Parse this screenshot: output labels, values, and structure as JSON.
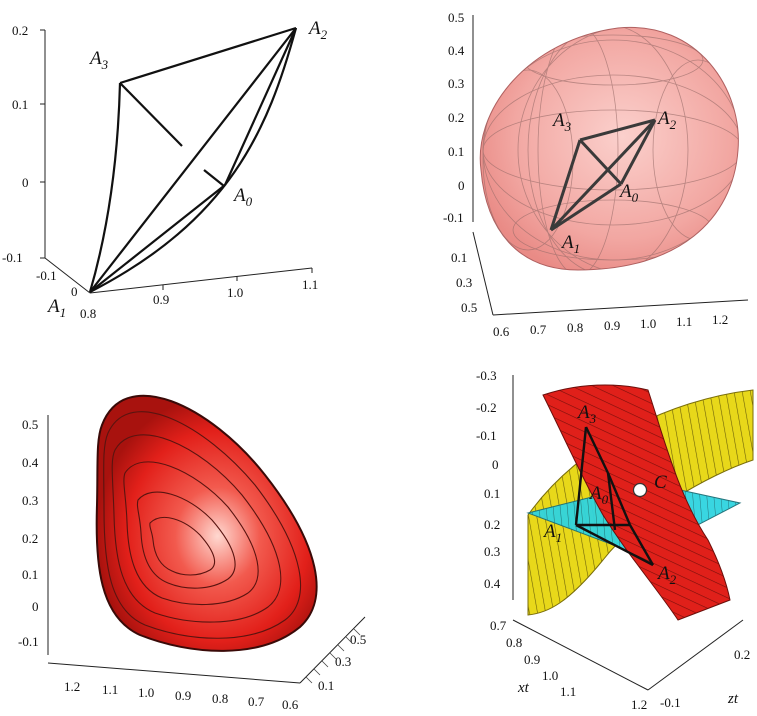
{
  "panels": {
    "top_left": {
      "z_ticks": [
        "0.2",
        "0.1",
        "0",
        "-0.1"
      ],
      "x_ticks": [
        "0.8",
        "0.9",
        "1.0",
        "1.1"
      ],
      "y_ticks": [
        "-0.1",
        "0"
      ],
      "vertices": [
        {
          "letter": "A",
          "sub": "3"
        },
        {
          "letter": "A",
          "sub": "2"
        },
        {
          "letter": "A",
          "sub": "0"
        },
        {
          "letter": "A",
          "sub": "1"
        }
      ]
    },
    "top_right": {
      "z_ticks": [
        "0.5",
        "0.4",
        "0.3",
        "0.2",
        "0.1",
        "0",
        "-0.1"
      ],
      "x_ticks": [
        "0.6",
        "0.7",
        "0.8",
        "0.9",
        "1.0",
        "1.1",
        "1.2"
      ],
      "y_ticks": [
        "0.1",
        "0.3",
        "0.5"
      ],
      "vertices": [
        {
          "letter": "A",
          "sub": "3"
        },
        {
          "letter": "A",
          "sub": "2"
        },
        {
          "letter": "A",
          "sub": "0"
        },
        {
          "letter": "A",
          "sub": "1"
        }
      ],
      "surface_color": "#f2a7a2"
    },
    "bottom_left": {
      "z_ticks": [
        "0.5",
        "0.4",
        "0.3",
        "0.2",
        "0.1",
        "0",
        "-0.1"
      ],
      "x_ticks": [
        "1.2",
        "1.1",
        "1.0",
        "0.9",
        "0.8",
        "0.7",
        "0.6"
      ],
      "y_ticks": [
        "0.1",
        "0.3",
        "0.5"
      ],
      "surface_color": "#e8201a"
    },
    "bottom_right": {
      "z_ticks": [
        "-0.3",
        "-0.2",
        "-0.1",
        "0",
        "0.1",
        "0.2",
        "0.3",
        "0.4"
      ],
      "x_ticks": [
        "0.7",
        "0.8",
        "0.9",
        "1.0",
        "1.1",
        "1.2"
      ],
      "y_ticks": [
        "-0.1",
        "0.2"
      ],
      "x_axis_label": "xt",
      "y_axis_label": "zt",
      "point_label": "C",
      "vertices": [
        {
          "letter": "A",
          "sub": "3"
        },
        {
          "letter": "A",
          "sub": "0"
        },
        {
          "letter": "A",
          "sub": "1"
        },
        {
          "letter": "A",
          "sub": "2"
        }
      ],
      "colors": {
        "red": "#e0201a",
        "yellow": "#e8d81a",
        "cyan": "#2fd4e0"
      }
    }
  }
}
